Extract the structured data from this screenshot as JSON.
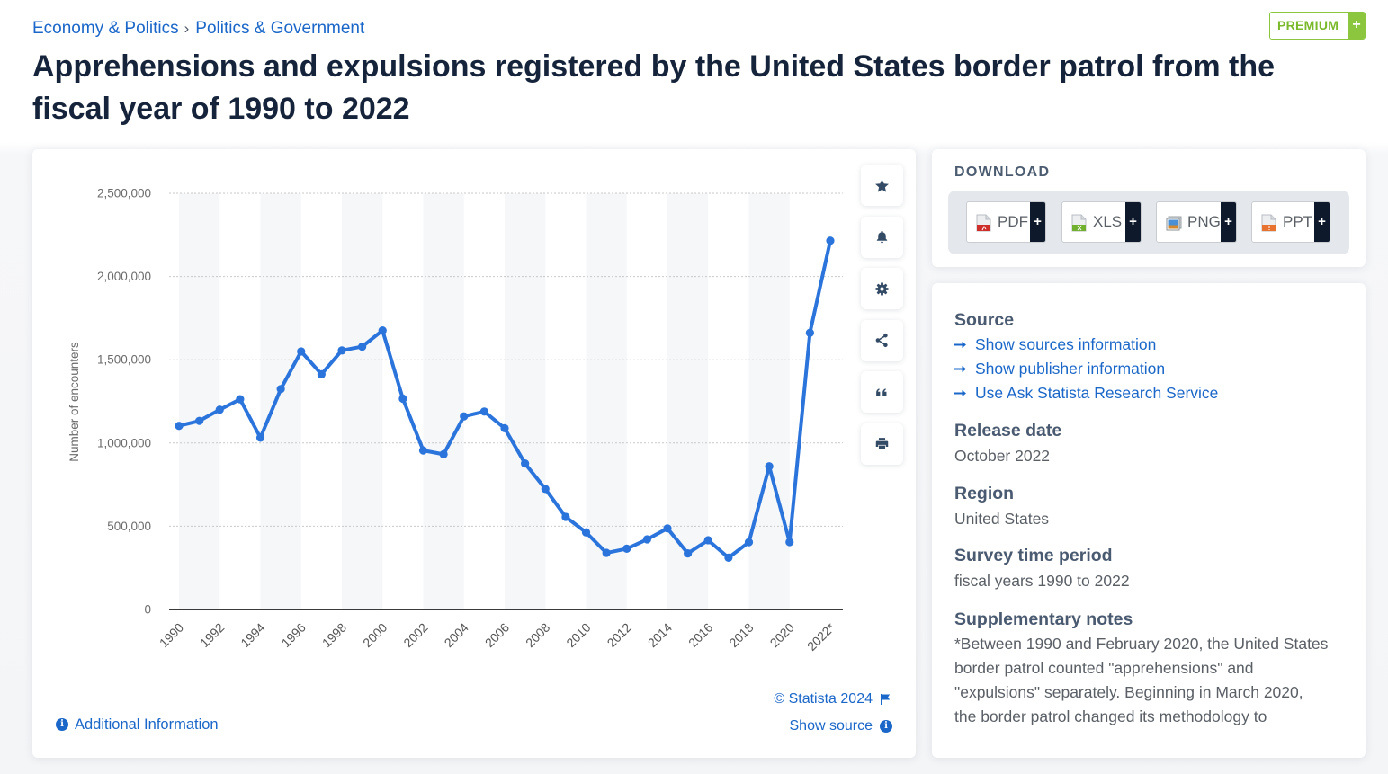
{
  "breadcrumb": [
    {
      "label": "Economy & Politics"
    },
    {
      "label": "Politics & Government"
    }
  ],
  "breadcrumb_separator": "›",
  "premium": {
    "label": "PREMIUM",
    "plus": "+"
  },
  "title": "Apprehensions and expulsions registered by the United States border patrol from the fiscal year of 1990 to 2022",
  "chart_tools": [
    {
      "icon": "star-icon"
    },
    {
      "icon": "bell-icon"
    },
    {
      "icon": "gear-icon"
    },
    {
      "icon": "share-icon"
    },
    {
      "icon": "quote-icon"
    },
    {
      "icon": "print-icon"
    }
  ],
  "chart_footer": {
    "additional_info": "Additional Information",
    "copyright": "© Statista 2024",
    "show_source": "Show source",
    "info_glyph": "i"
  },
  "download": {
    "title": "DOWNLOAD",
    "formats": [
      {
        "label": "PDF",
        "plus": "+",
        "icon": "pdf-file-icon"
      },
      {
        "label": "XLS",
        "plus": "+",
        "icon": "xls-file-icon"
      },
      {
        "label": "PNG",
        "plus": "+",
        "icon": "png-image-icon"
      },
      {
        "label": "PPT",
        "plus": "+",
        "icon": "ppt-file-icon"
      }
    ]
  },
  "details": {
    "source": {
      "heading": "Source",
      "links": [
        "Show sources information",
        "Show publisher information",
        "Use Ask Statista Research Service"
      ]
    },
    "release_date": {
      "heading": "Release date",
      "value": "October 2022"
    },
    "region": {
      "heading": "Region",
      "value": "United States"
    },
    "survey_period": {
      "heading": "Survey time period",
      "value": "fiscal years 1990 to 2022"
    },
    "notes": {
      "heading": "Supplementary notes",
      "text": "*Between 1990 and February 2020, the United States border patrol counted \"apprehensions\" and \"expulsions\" separately. Beginning in March 2020, the border patrol changed its methodology to"
    }
  },
  "colors": {
    "accent_blue": "#1a67c9",
    "series_line": "#2a74dc",
    "premium_green": "#8cc63f",
    "title_text": "#16243b"
  },
  "chart_data": {
    "type": "line",
    "title": "Apprehensions and expulsions registered by the United States border patrol from the fiscal year of 1990 to 2022",
    "xlabel": "",
    "ylabel": "Number of encounters",
    "categories": [
      "1990",
      "1991",
      "1992",
      "1993",
      "1994",
      "1995",
      "1996",
      "1997",
      "1998",
      "1999",
      "2000",
      "2001",
      "2002",
      "2003",
      "2004",
      "2005",
      "2006",
      "2007",
      "2008",
      "2009",
      "2010",
      "2011",
      "2012",
      "2013",
      "2014",
      "2015",
      "2016",
      "2017",
      "2018",
      "2019",
      "2020",
      "2021",
      "2022*"
    ],
    "x_tick_labels": [
      "1990",
      "1992",
      "1994",
      "1996",
      "1998",
      "2000",
      "2002",
      "2004",
      "2006",
      "2008",
      "2010",
      "2012",
      "2014",
      "2016",
      "2018",
      "2020",
      "2022*"
    ],
    "series": [
      {
        "name": "Number of encounters",
        "values": [
          1103000,
          1133000,
          1200000,
          1263000,
          1032000,
          1324000,
          1550000,
          1413000,
          1556000,
          1579000,
          1676000,
          1266000,
          955000,
          932000,
          1160000,
          1189000,
          1089000,
          877000,
          724000,
          556000,
          463000,
          340000,
          365000,
          421000,
          487000,
          337000,
          416000,
          311000,
          404000,
          860000,
          405000,
          1662000,
          2215000
        ]
      }
    ],
    "ylim": [
      0,
      2500000
    ],
    "y_ticks": [
      0,
      500000,
      1000000,
      1500000,
      2000000,
      2500000
    ],
    "y_tick_labels": [
      "0",
      "500,000",
      "1,000,000",
      "1,500,000",
      "2,000,000",
      "2,500,000"
    ],
    "grid": true,
    "legend": "none",
    "alternating_bands": true
  }
}
